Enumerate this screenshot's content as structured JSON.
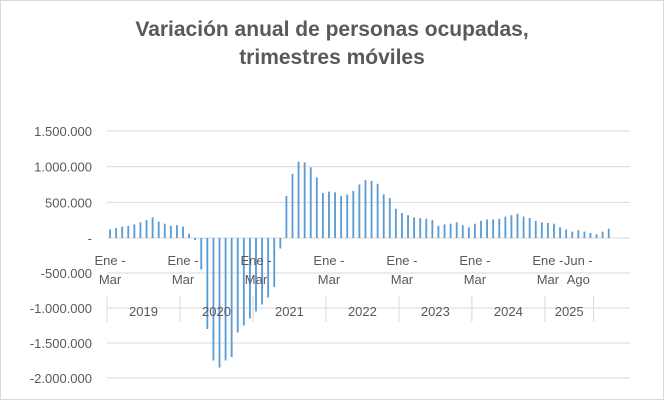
{
  "chart_data": {
    "type": "bar",
    "title_lines": [
      "Variación anual de personas ocupadas,",
      "trimestres móviles"
    ],
    "y_ticks": [
      1500000,
      1000000,
      500000,
      0,
      -500000,
      -1000000,
      -1500000,
      -2000000
    ],
    "y_tick_labels": [
      "1.500.000",
      "1.000.000",
      "500.000",
      "-",
      "-500.000",
      "-1.000.000",
      "-1.500.000",
      "-2.000.000"
    ],
    "ylim": [
      -2000000,
      1500000
    ],
    "grid": true,
    "bar_color": "#5b9bd5",
    "series": [
      {
        "name": "Variación anual de personas ocupadas",
        "values": [
          120000,
          140000,
          160000,
          170000,
          190000,
          220000,
          250000,
          290000,
          230000,
          200000,
          170000,
          180000,
          160000,
          60000,
          -30000,
          -450000,
          -1300000,
          -1750000,
          -1850000,
          -1750000,
          -1700000,
          -1350000,
          -1250000,
          -1150000,
          -1050000,
          -950000,
          -850000,
          -700000,
          -150000,
          590000,
          900000,
          1070000,
          1060000,
          990000,
          850000,
          630000,
          650000,
          640000,
          590000,
          610000,
          660000,
          750000,
          810000,
          800000,
          760000,
          610000,
          560000,
          410000,
          350000,
          320000,
          290000,
          280000,
          270000,
          250000,
          170000,
          190000,
          200000,
          220000,
          180000,
          150000,
          200000,
          240000,
          260000,
          260000,
          270000,
          300000,
          320000,
          340000,
          300000,
          280000,
          240000,
          220000,
          210000,
          200000,
          150000,
          120000,
          90000,
          110000,
          90000,
          70000,
          50000,
          90000,
          130000
        ]
      }
    ],
    "slot_count": 86,
    "x_period_labels": [
      {
        "top": "Ene -",
        "bottom": "Mar",
        "slot": 0
      },
      {
        "top": "Ene -",
        "bottom": "Mar",
        "slot": 12
      },
      {
        "top": "Ene -",
        "bottom": "Mar",
        "slot": 24
      },
      {
        "top": "Ene -",
        "bottom": "Mar",
        "slot": 36
      },
      {
        "top": "Ene -",
        "bottom": "Mar",
        "slot": 48
      },
      {
        "top": "Ene -",
        "bottom": "Mar",
        "slot": 60
      },
      {
        "top": "Ene -",
        "bottom": "Mar",
        "slot": 72
      },
      {
        "top": "Jun -",
        "bottom": "Ago",
        "slot": 77
      }
    ],
    "years": [
      {
        "label": "2019",
        "start_slot": 0,
        "end_slot": 12
      },
      {
        "label": "2020",
        "start_slot": 12,
        "end_slot": 24
      },
      {
        "label": "2021",
        "start_slot": 24,
        "end_slot": 36
      },
      {
        "label": "2022",
        "start_slot": 36,
        "end_slot": 48
      },
      {
        "label": "2023",
        "start_slot": 48,
        "end_slot": 60
      },
      {
        "label": "2024",
        "start_slot": 60,
        "end_slot": 72
      },
      {
        "label": "2025",
        "start_slot": 72,
        "end_slot": 80
      }
    ]
  }
}
